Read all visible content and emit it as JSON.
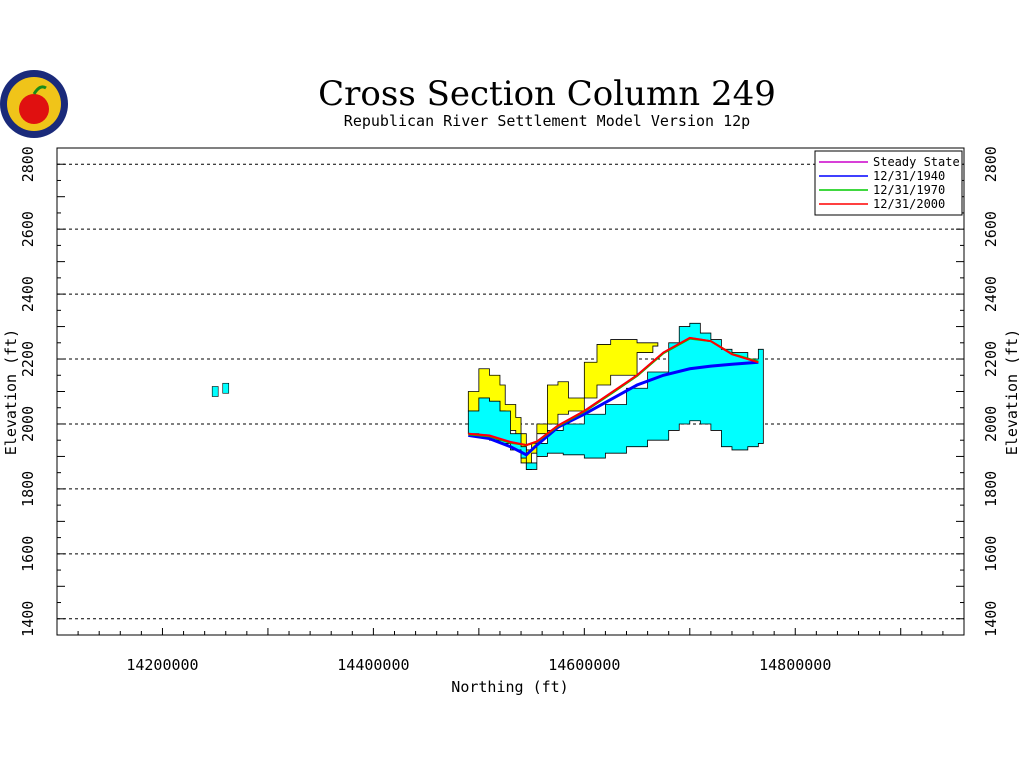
{
  "chart_data": {
    "type": "line",
    "title": "Cross Section Column 249",
    "subtitle": "Republican River Settlement Model Version 12p",
    "xlabel": "Northing (ft)",
    "ylabel": "Elevation (ft)",
    "xlim": [
      14100000,
      14960000
    ],
    "ylim": [
      1350,
      2850
    ],
    "x_ticks": [
      "14200000",
      "14400000",
      "14600000",
      "14800000"
    ],
    "x_tick_values": [
      14200000,
      14400000,
      14600000,
      14800000
    ],
    "y_ticks": [
      "1400",
      "1600",
      "1800",
      "2000",
      "2200",
      "2400",
      "2600",
      "2800"
    ],
    "y_tick_values": [
      1400,
      1600,
      1800,
      2000,
      2200,
      2400,
      2600,
      2800
    ],
    "grid": "horizontal-dashed",
    "legend_position": "top-right",
    "colors": {
      "upper_layer": "#ffff00",
      "lower_layer": "#00ffff",
      "steady_state": "#cc00cc",
      "y1940": "#0000ff",
      "y1970": "#00cc00",
      "y2000": "#ff0000"
    },
    "series": [
      {
        "name": "Steady State",
        "color": "#cc00cc",
        "x": [
          14490000,
          14510000,
          14530000,
          14545000,
          14555000,
          14575000,
          14600000,
          14625000,
          14650000,
          14675000,
          14700000,
          14720000,
          14740000,
          14765000
        ],
        "y": [
          1970,
          1965,
          1945,
          1935,
          1945,
          1995,
          2040,
          2095,
          2150,
          2220,
          2265,
          2255,
          2215,
          2190
        ]
      },
      {
        "name": "12/31/1940",
        "color": "#0000ff",
        "x": [
          14490000,
          14510000,
          14530000,
          14545000,
          14555000,
          14575000,
          14600000,
          14625000,
          14650000,
          14675000,
          14700000,
          14720000,
          14740000,
          14765000
        ],
        "y": [
          1965,
          1955,
          1930,
          1905,
          1935,
          1990,
          2030,
          2075,
          2120,
          2150,
          2170,
          2178,
          2184,
          2190
        ]
      },
      {
        "name": "12/31/1970",
        "color": "#00cc00",
        "x": [
          14490000,
          14510000,
          14530000,
          14545000,
          14555000,
          14575000,
          14600000,
          14625000,
          14650000,
          14675000,
          14700000,
          14720000,
          14740000,
          14765000
        ],
        "y": [
          1968,
          1962,
          1942,
          1935,
          1945,
          1993,
          2038,
          2092,
          2148,
          2218,
          2263,
          2255,
          2216,
          2192
        ]
      },
      {
        "name": "12/31/2000",
        "color": "#ff0000",
        "x": [
          14490000,
          14510000,
          14530000,
          14545000,
          14555000,
          14575000,
          14600000,
          14625000,
          14650000,
          14675000,
          14700000,
          14720000,
          14740000,
          14765000
        ],
        "y": [
          1970,
          1964,
          1944,
          1935,
          1946,
          1995,
          2040,
          2095,
          2150,
          2220,
          2265,
          2255,
          2215,
          2190
        ]
      }
    ],
    "layers": [
      {
        "name": "upper-layer",
        "color": "#ffff00",
        "x": [
          14490000,
          14500000,
          14510000,
          14520000,
          14525000,
          14535000,
          14540000,
          14545000,
          14550000,
          14555000,
          14565000,
          14575000,
          14585000,
          14600000,
          14612000,
          14625000,
          14650000,
          14665000
        ],
        "top": [
          2100,
          2170,
          2150,
          2120,
          2060,
          2020,
          1970,
          1920,
          1940,
          2000,
          2120,
          2130,
          2080,
          2190,
          2245,
          2260,
          2250,
          2250
        ],
        "bottom": [
          2040,
          2080,
          2070,
          2040,
          1980,
          1940,
          1880,
          1860,
          1910,
          1970,
          2000,
          2030,
          2040,
          2080,
          2120,
          2150,
          2220,
          2240
        ]
      },
      {
        "name": "lower-layer",
        "color": "#00ffff",
        "x": [
          14490000,
          14500000,
          14510000,
          14520000,
          14530000,
          14540000,
          14545000,
          14555000,
          14565000,
          14580000,
          14600000,
          14620000,
          14640000,
          14660000,
          14680000,
          14690000,
          14700000,
          14710000,
          14720000,
          14730000,
          14740000,
          14755000,
          14765000
        ],
        "top": [
          2040,
          2080,
          2070,
          2040,
          1970,
          1930,
          1880,
          1940,
          1980,
          2000,
          2030,
          2060,
          2110,
          2160,
          2250,
          2300,
          2310,
          2280,
          2260,
          2230,
          2220,
          2200,
          2230
        ],
        "bottom": [
          1970,
          1965,
          1950,
          1940,
          1920,
          1895,
          1860,
          1900,
          1910,
          1905,
          1895,
          1910,
          1930,
          1950,
          1980,
          2000,
          2010,
          2000,
          1980,
          1930,
          1920,
          1930,
          1940
        ]
      }
    ],
    "isolated_marks": [
      {
        "x": 14250000,
        "y": 2100,
        "color": "#00ffff"
      },
      {
        "x": 14260000,
        "y": 2110,
        "color": "#00ffff"
      }
    ]
  }
}
